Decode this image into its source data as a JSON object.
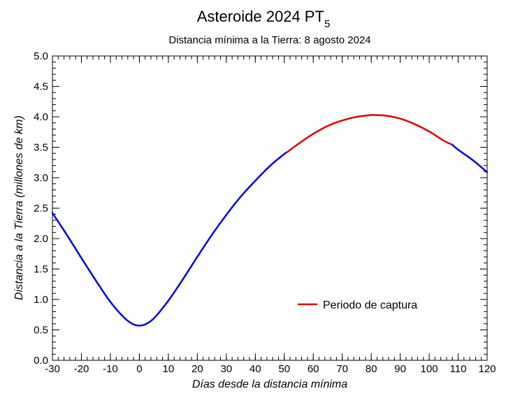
{
  "chart_data": {
    "type": "line",
    "title": "Asteroide 2024 PT",
    "title_subscript": "5",
    "subtitle": "Distancia mínima a la Tierra: 8 agosto 2024",
    "xlabel": "Días desde la distancia mínima",
    "ylabel": "Distancia a la Tierra (millones de km)",
    "xlim": [
      -30,
      120
    ],
    "ylim": [
      0.0,
      5.0
    ],
    "x_ticks": [
      "-30",
      "-20",
      "-10",
      "0",
      "10",
      "20",
      "30",
      "40",
      "50",
      "60",
      "70",
      "80",
      "90",
      "100",
      "110",
      "120"
    ],
    "y_ticks": [
      "0.0",
      "0.5",
      "1.0",
      "1.5",
      "2.0",
      "2.5",
      "3.0",
      "3.5",
      "4.0",
      "4.5",
      "5.0"
    ],
    "grid": false,
    "legend": {
      "label": "Periodo de captura",
      "color": "#dd0000",
      "position": "lower-right"
    },
    "series": [
      {
        "color": "#0000dd",
        "x": [
          -30,
          -25,
          -20,
          -15,
          -10,
          -5,
          -2,
          0,
          2,
          5,
          10,
          15,
          20,
          25,
          30,
          35,
          40,
          45,
          50,
          51
        ],
        "y": [
          2.42,
          2.06,
          1.68,
          1.31,
          0.96,
          0.69,
          0.59,
          0.57,
          0.59,
          0.69,
          0.98,
          1.33,
          1.7,
          2.06,
          2.39,
          2.69,
          2.95,
          3.19,
          3.39,
          3.42
        ]
      },
      {
        "name": "Periodo de captura",
        "color": "#dd0000",
        "x": [
          51,
          55,
          60,
          65,
          70,
          75,
          80,
          81,
          85,
          90,
          95,
          100,
          105,
          108
        ],
        "y": [
          3.42,
          3.56,
          3.72,
          3.85,
          3.94,
          4.0,
          4.03,
          4.03,
          4.02,
          3.97,
          3.88,
          3.76,
          3.61,
          3.54
        ]
      },
      {
        "color": "#0000dd",
        "x": [
          108,
          110,
          115,
          120
        ],
        "y": [
          3.54,
          3.46,
          3.29,
          3.09
        ]
      }
    ]
  }
}
